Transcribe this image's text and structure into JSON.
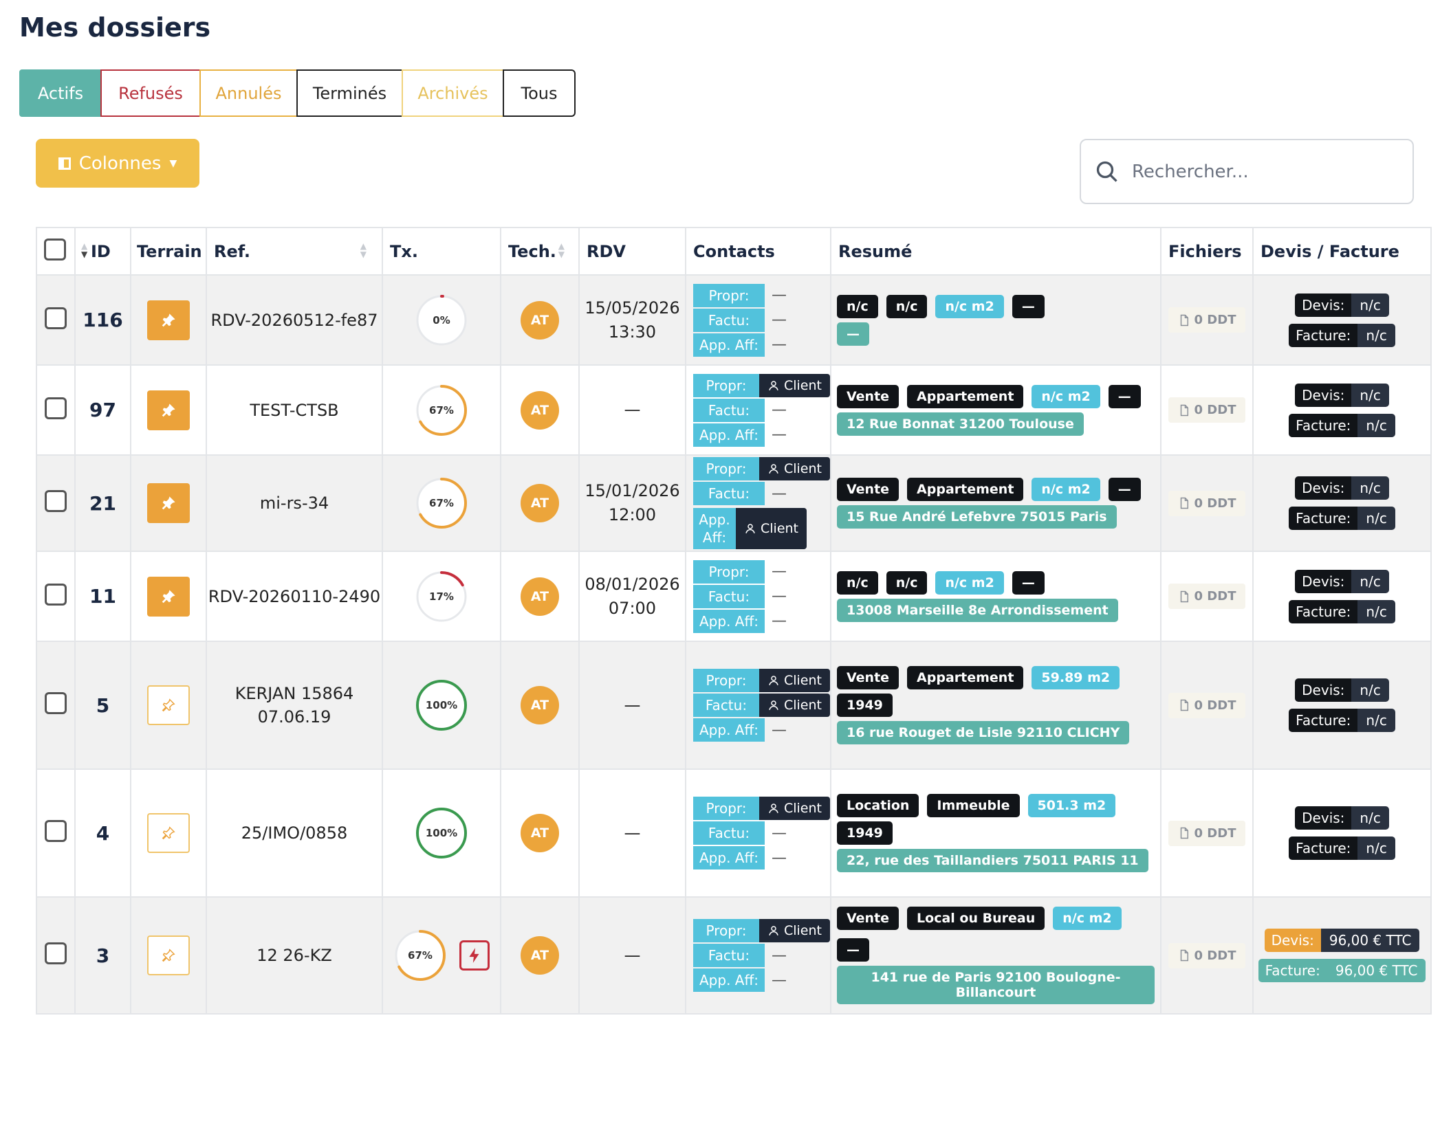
{
  "page_title": "Mes dossiers",
  "tabs": [
    {
      "key": "actifs",
      "label": "Actifs"
    },
    {
      "key": "refuses",
      "label": "Refusés"
    },
    {
      "key": "annules",
      "label": "Annulés"
    },
    {
      "key": "termines",
      "label": "Terminés"
    },
    {
      "key": "archives",
      "label": "Archivés"
    },
    {
      "key": "tous",
      "label": "Tous"
    }
  ],
  "active_tab": "actifs",
  "columns_button": {
    "label": "Colonnes",
    "icon": "columns-icon"
  },
  "search": {
    "placeholder": "Rechercher...",
    "value": ""
  },
  "table": {
    "headers": {
      "id": "ID",
      "terrain": "Terrain",
      "ref": "Ref.",
      "tx": "Tx.",
      "tech": "Tech.",
      "rdv": "RDV",
      "contacts": "Contacts",
      "resume": "Resumé",
      "fichiers": "Fichiers",
      "devis": "Devis / Facture"
    },
    "contact_labels": {
      "propr": "Propr:",
      "factu": "Factu:",
      "app": "App. Aff:"
    },
    "devis_labels": {
      "devis": "Devis:",
      "facture": "Facture:"
    },
    "rows": [
      {
        "id": "116",
        "terrain": "filled",
        "ref": [
          "RDV-20260512-fe87"
        ],
        "tx": 0,
        "tx_label": "0%",
        "tx_color": "#c52e3c",
        "tech": "AT",
        "rdv": [
          "15/05/2026",
          "13:30"
        ],
        "contacts": {
          "propr": "—",
          "factu": "—",
          "app": "—"
        },
        "resume": [
          [
            "n/c|dark",
            "n/c|dark",
            "n/c m2|blue",
            "—|dark"
          ],
          [
            "—|green"
          ]
        ],
        "fichiers": "0 DDT",
        "devis": "n/c",
        "facture": "n/c",
        "devis_style": "dark",
        "height": 131
      },
      {
        "id": "97",
        "terrain": "filled",
        "ref": [
          "TEST-CTSB"
        ],
        "tx": 67,
        "tx_label": "67%",
        "tx_color": "#eba23a",
        "tech": "AT",
        "rdv": [
          "—"
        ],
        "contacts": {
          "propr": "Client",
          "factu": "—",
          "app": "—"
        },
        "resume": [
          [
            "Vente|dark",
            "Appartement|dark",
            "n/c m2|blue",
            "—|dark"
          ],
          [
            "12 Rue Bonnat 31200 Toulouse|green"
          ]
        ],
        "fichiers": "0 DDT",
        "devis": "n/c",
        "facture": "n/c",
        "devis_style": "dark",
        "height": 131
      },
      {
        "id": "21",
        "terrain": "filled",
        "ref": [
          "mi-rs-34"
        ],
        "tx": 67,
        "tx_label": "67%",
        "tx_color": "#eba23a",
        "tech": "AT",
        "rdv": [
          "15/01/2026",
          "12:00"
        ],
        "contacts": {
          "propr": "Client",
          "factu": "—",
          "app": "Client"
        },
        "resume": [
          [
            "Vente|dark",
            "Appartement|dark",
            "n/c m2|blue",
            "—|dark"
          ],
          [
            "15 Rue André Lefebvre 75015 Paris|green"
          ]
        ],
        "fichiers": "0 DDT",
        "devis": "n/c",
        "facture": "n/c",
        "devis_style": "dark",
        "height": 131
      },
      {
        "id": "11",
        "terrain": "filled",
        "ref": [
          "RDV-20260110-2490"
        ],
        "tx": 17,
        "tx_label": "17%",
        "tx_color": "#c52e3c",
        "tech": "AT",
        "rdv": [
          "08/01/2026",
          "07:00"
        ],
        "contacts": {
          "propr": "—",
          "factu": "—",
          "app": "—"
        },
        "resume": [
          [
            "n/c|dark",
            "n/c|dark",
            "n/c m2|blue",
            "—|dark"
          ],
          [
            "13008 Marseille 8e Arrondissement|green"
          ]
        ],
        "fichiers": "0 DDT",
        "devis": "n/c",
        "facture": "n/c",
        "devis_style": "dark",
        "height": 131
      },
      {
        "id": "5",
        "terrain": "outline",
        "ref": [
          "KERJAN 15864",
          "07.06.19"
        ],
        "tx": 100,
        "tx_label": "100%",
        "tx_color": "#3a9a4f",
        "tech": "AT",
        "rdv": [
          "—"
        ],
        "contacts": {
          "propr": "Client",
          "factu": "Client",
          "app": "—"
        },
        "resume": [
          [
            "Vente|dark",
            "Appartement|dark",
            "59.89 m2|blue"
          ],
          [
            "1949|dark"
          ],
          [
            "16 rue Rouget de Lisle 92110 CLICHY|green"
          ]
        ],
        "fichiers": "0 DDT",
        "devis": "n/c",
        "facture": "n/c",
        "devis_style": "dark",
        "height": 186
      },
      {
        "id": "4",
        "terrain": "outline",
        "ref": [
          "25/IMO/0858"
        ],
        "tx": 100,
        "tx_label": "100%",
        "tx_color": "#3a9a4f",
        "tech": "AT",
        "rdv": [
          "—"
        ],
        "contacts": {
          "propr": "Client",
          "factu": "—",
          "app": "—"
        },
        "resume": [
          [
            "Location|dark",
            "Immeuble|dark",
            "501.3 m2|blue"
          ],
          [
            "1949|dark"
          ],
          [
            "22, rue des Taillandiers 75011 PARIS 11|green"
          ]
        ],
        "fichiers": "0 DDT",
        "devis": "n/c",
        "facture": "n/c",
        "devis_style": "dark",
        "height": 186
      },
      {
        "id": "3",
        "terrain": "outline",
        "ref": [
          "12 26-KZ"
        ],
        "tx": 67,
        "tx_label": "67%",
        "tx_color": "#eba23a",
        "bolt": true,
        "tech": "AT",
        "rdv": [
          "—"
        ],
        "contacts": {
          "propr": "Client",
          "factu": "—",
          "app": "—"
        },
        "resume": [
          [
            "Vente|dark",
            "Local ou Bureau|dark",
            "n/c m2|blue",
            "—|dark"
          ],
          [
            "141 rue de Paris 92100 Boulogne-Billancourt|green"
          ]
        ],
        "fichiers": "0 DDT",
        "devis": "96,00 € TTC",
        "facture": "96,00 € TTC",
        "devis_style": "paid",
        "height": 170
      }
    ]
  }
}
